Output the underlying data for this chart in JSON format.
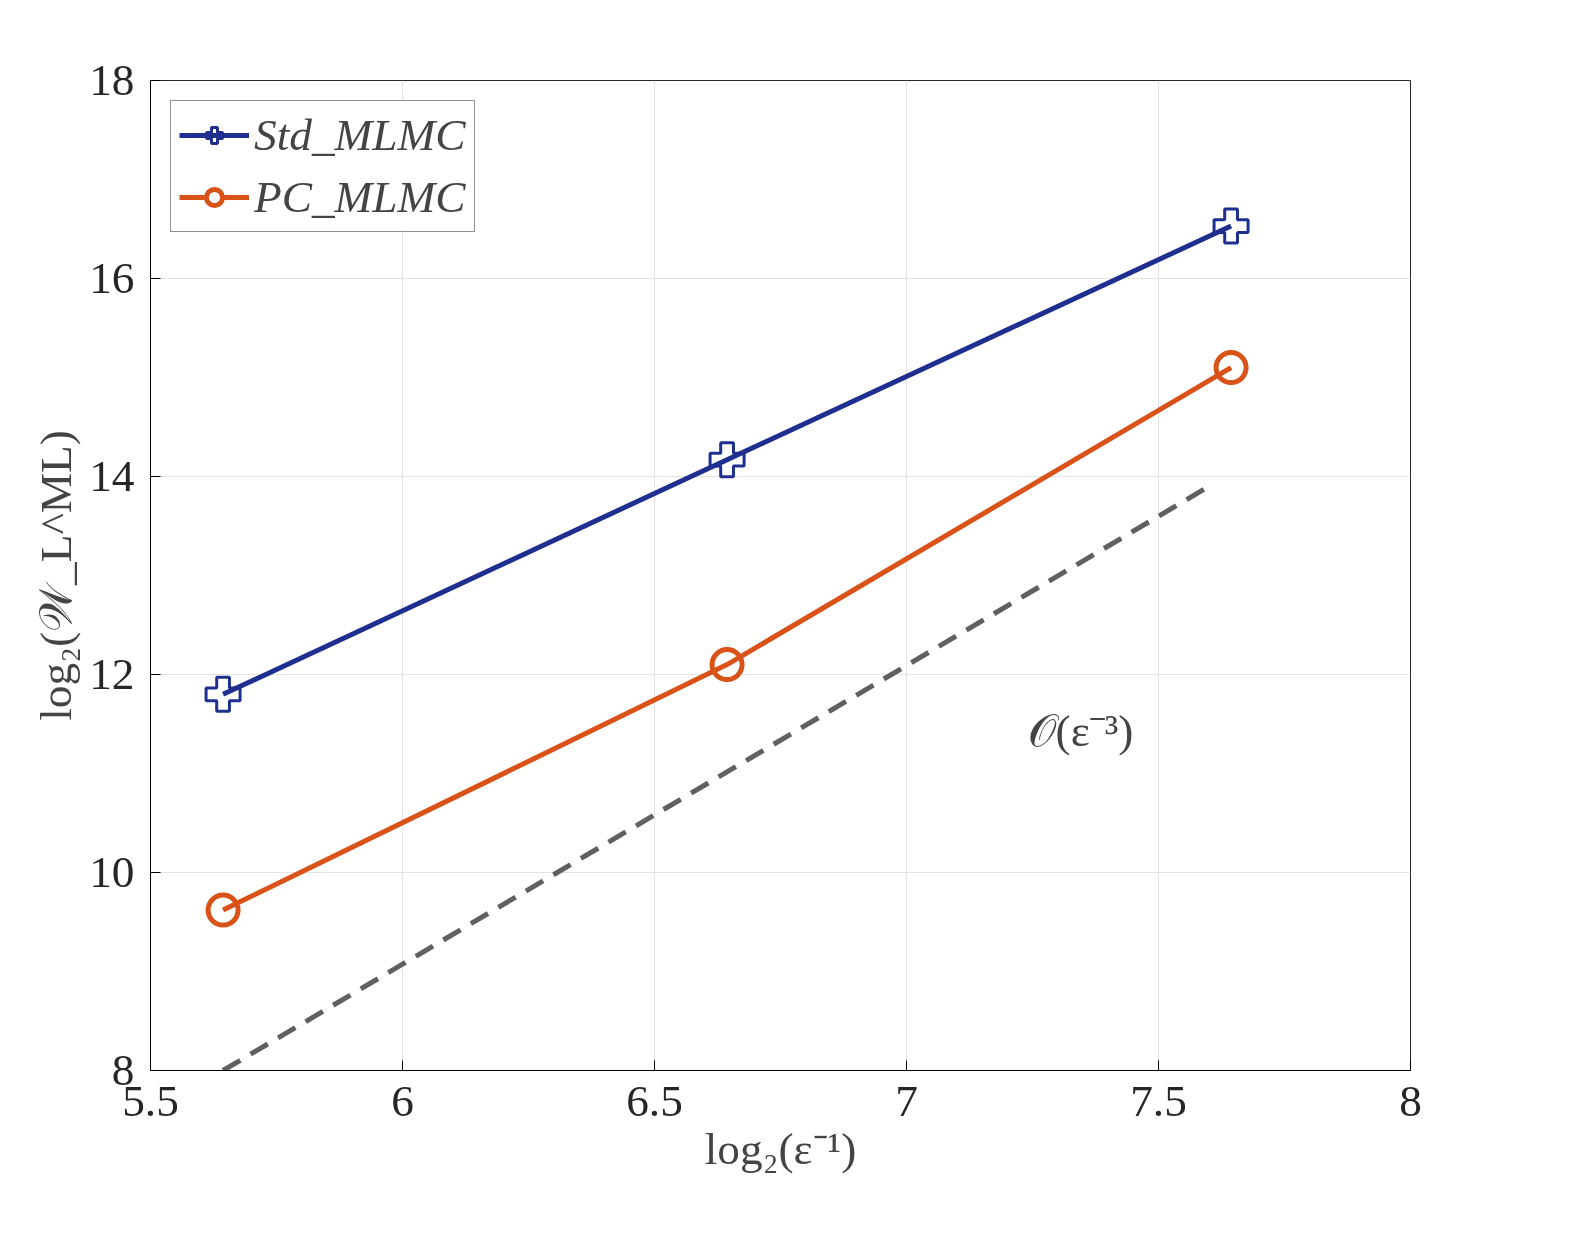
{
  "chart_data": {
    "type": "line",
    "xlabel": "log₂(ε⁻¹)",
    "ylabel": "log₂(𝒲_L^ML)",
    "x": [
      5.644,
      6.644,
      7.644
    ],
    "series": [
      {
        "name": "Std_MLMC",
        "color": "#1f2f8f",
        "values": [
          11.8,
          14.17,
          16.53
        ],
        "marker": "cross",
        "line_style": "solid"
      },
      {
        "name": "PC_MLMC",
        "color": "#d95319",
        "values": [
          9.62,
          12.1,
          15.1
        ],
        "marker": "circle",
        "line_style": "solid"
      },
      {
        "color": "#606060",
        "x": [
          5.644,
          7.6
        ],
        "values": [
          8,
          13.9
        ],
        "marker": "none",
        "line_style": "dashed"
      }
    ],
    "annotations": [
      "𝒪(ε⁻³)"
    ],
    "xlim": [
      5.5,
      8
    ],
    "ylim": [
      8,
      18
    ],
    "xticks": [
      5.5,
      6,
      6.5,
      7,
      7.5,
      8
    ],
    "yticks": [
      8,
      10,
      12,
      14,
      16,
      18
    ],
    "grid": true,
    "legend": "top left"
  }
}
